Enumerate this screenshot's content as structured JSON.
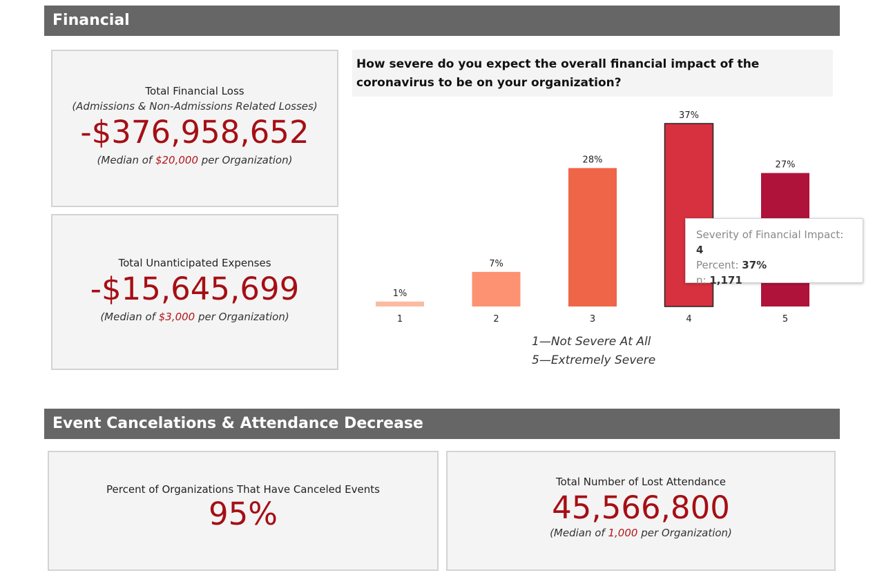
{
  "sections": {
    "financial": "Financial",
    "events": "Event Cancelations & Attendance Decrease"
  },
  "cards": {
    "total_loss": {
      "title": "Total Financial Loss",
      "subtitle": "(Admissions & Non-Admissions Related Losses)",
      "value": "-$376,958,652",
      "median_prefix": "(Median  of ",
      "median_value": "$20,000",
      "median_suffix": " per Organization)"
    },
    "unanticipated": {
      "title": "Total Unanticipated Expenses",
      "value": "-$15,645,699",
      "median_prefix": "(Median  of ",
      "median_value": "$3,000",
      "median_suffix": " per Organization)"
    },
    "canceled": {
      "title": "Percent of Organizations That Have Canceled Events",
      "value": "95%"
    },
    "attendance": {
      "title": "Total Number of Lost Attendance",
      "value": "45,566,800",
      "median_prefix": "(Median of ",
      "median_value": "1,000",
      "median_suffix": " per Organization)"
    }
  },
  "chart": {
    "question": "How severe do you expect the overall financial impact of the coronavirus to be on your organization?",
    "legend_line1": "1—Not Severe At All",
    "legend_line2": "5—Extremely Severe"
  },
  "tooltip": {
    "severity_label": "Severity of Financial Impact: ",
    "severity_value": "4",
    "percent_label": "Percent: ",
    "percent_value": "37%",
    "n_label": "n: ",
    "n_value": "1,171"
  },
  "colors": {
    "accent_red": "#a50f15",
    "bar_colors": [
      "#fcbba1",
      "#fc9272",
      "#ef6548",
      "#d7303f",
      "#b0133a"
    ],
    "header_bg": "#666666"
  },
  "chart_data": {
    "type": "bar",
    "title": "How severe do you expect the overall financial impact of the coronavirus to be on your organization?",
    "categories": [
      "1",
      "2",
      "3",
      "4",
      "5"
    ],
    "values": [
      1,
      7,
      28,
      37,
      27
    ],
    "labels": [
      "1%",
      "7%",
      "28%",
      "37%",
      "27%"
    ],
    "xlabel": "",
    "ylabel": "",
    "ylim": [
      0,
      37
    ],
    "grid": false,
    "highlighted_category": "4"
  }
}
